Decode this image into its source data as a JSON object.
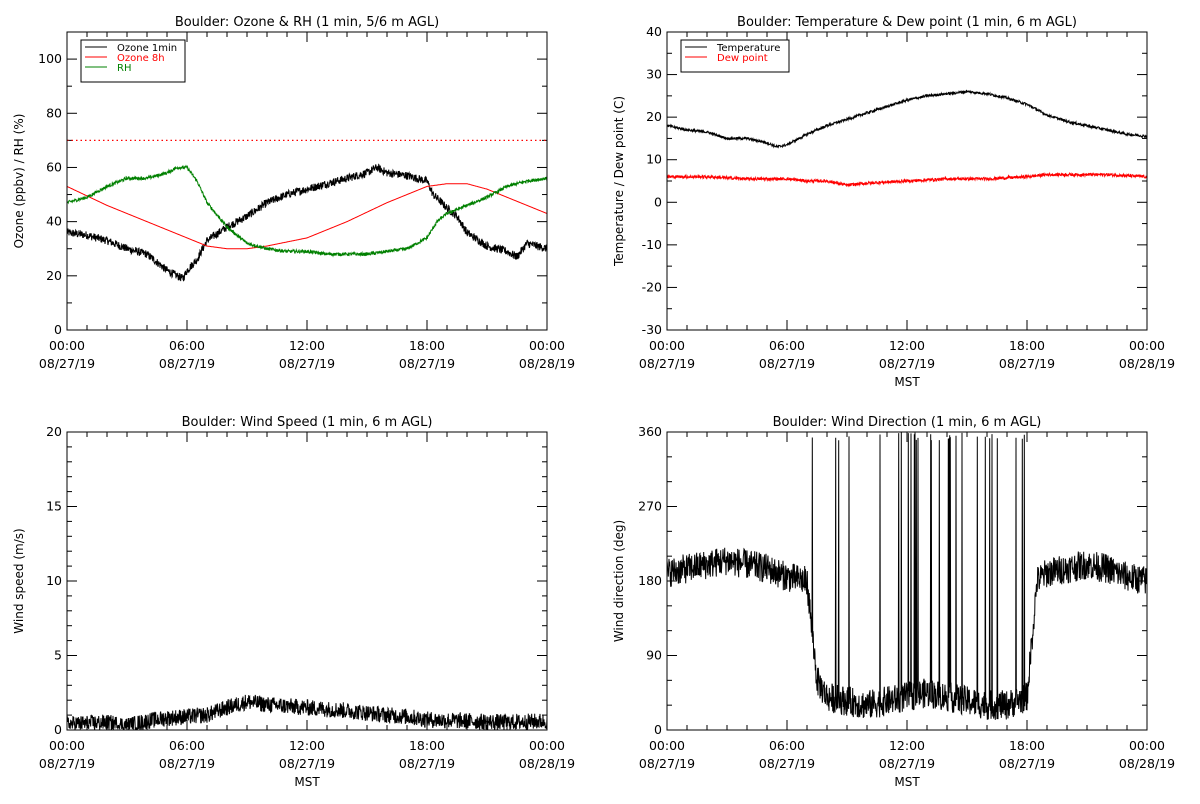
{
  "chart_data": [
    {
      "type": "line",
      "title": "Boulder: Ozone & RH (1 min, 5/6 m AGL)",
      "xlabel": "",
      "ylabel": "Ozone (ppbv) / RH (%)",
      "xlim": [
        0,
        24
      ],
      "ylim": [
        0,
        110
      ],
      "yticks": [
        0,
        20,
        40,
        60,
        80,
        100
      ],
      "xtick_labels": [
        [
          "00:00",
          "08/27/19"
        ],
        [
          "06:00",
          "08/27/19"
        ],
        [
          "12:00",
          "08/27/19"
        ],
        [
          "18:00",
          "08/27/19"
        ],
        [
          "00:00",
          "08/28/19"
        ]
      ],
      "grid": false,
      "legend": "top-left",
      "series": [
        {
          "name": "Ozone 1min",
          "color": "#000000",
          "noise": 1.5,
          "x": [
            0,
            1,
            2,
            3,
            4,
            4.5,
            5,
            5.5,
            5.8,
            6,
            6.5,
            7,
            8,
            9,
            10,
            11,
            12,
            13,
            14,
            15,
            15.5,
            16,
            17,
            18,
            18.3,
            18.6,
            19,
            19.5,
            20,
            21,
            22,
            22.5,
            23,
            24
          ],
          "y": [
            36,
            35,
            33,
            30,
            28,
            25,
            22,
            20,
            19,
            22,
            26,
            33,
            38,
            42,
            47,
            50,
            52,
            54,
            56,
            58,
            60,
            58,
            57,
            55,
            50,
            48,
            45,
            42,
            36,
            31,
            29,
            27,
            32,
            30
          ]
        },
        {
          "name": "Ozone 8h",
          "color": "#ff0000",
          "noise": 0,
          "x": [
            0,
            2,
            4,
            6,
            7,
            8,
            9,
            10,
            12,
            14,
            16,
            18,
            19,
            20,
            21,
            22,
            23,
            24
          ],
          "y": [
            53,
            46,
            40,
            34,
            31,
            30,
            30,
            31,
            34,
            40,
            47,
            53,
            54,
            54,
            52,
            49,
            46,
            43
          ]
        },
        {
          "name": "RH",
          "color": "#008000",
          "noise": 0.6,
          "x": [
            0,
            1,
            2,
            3,
            4,
            5,
            5.5,
            6,
            6.5,
            7,
            8,
            9,
            10,
            11,
            12,
            13,
            14,
            15,
            16,
            17,
            18,
            18.5,
            19,
            20,
            21,
            22,
            23,
            24
          ],
          "y": [
            47,
            49,
            53,
            56,
            56,
            58,
            60,
            60,
            55,
            47,
            38,
            32,
            30,
            29,
            29,
            28,
            28,
            28,
            29,
            30,
            34,
            40,
            43,
            46,
            49,
            53,
            55,
            56
          ]
        }
      ],
      "reference_line": {
        "y": 70,
        "color": "#ff0000",
        "style": "dotted"
      }
    },
    {
      "type": "line",
      "title": "Boulder: Temperature & Dew point (1 min, 6 m AGL)",
      "xlabel": "MST",
      "ylabel": "Temperature / Dew point (C)",
      "xlim": [
        0,
        24
      ],
      "ylim": [
        -30,
        40
      ],
      "yticks": [
        -30,
        -20,
        -10,
        0,
        10,
        20,
        30,
        40
      ],
      "xtick_labels": [
        [
          "00:00",
          "08/27/19"
        ],
        [
          "06:00",
          "08/27/19"
        ],
        [
          "12:00",
          "08/27/19"
        ],
        [
          "18:00",
          "08/27/19"
        ],
        [
          "00:00",
          "08/28/19"
        ]
      ],
      "grid": false,
      "legend": "top-left",
      "series": [
        {
          "name": "Temperature",
          "color": "#000000",
          "noise": 0.3,
          "x": [
            0,
            1,
            2,
            3,
            4,
            5,
            5.5,
            6,
            7,
            8,
            9,
            10,
            11,
            12,
            13,
            14,
            15,
            16,
            17,
            18,
            19,
            20,
            21,
            22,
            23,
            24
          ],
          "y": [
            18,
            17,
            16.5,
            15,
            15,
            14,
            13,
            13.5,
            16,
            18,
            19.5,
            21,
            22.5,
            24,
            25,
            25.5,
            26,
            25.5,
            24.5,
            23,
            20.5,
            19,
            18,
            17,
            16,
            15.5
          ]
        },
        {
          "name": "Dew point",
          "color": "#ff0000",
          "noise": 0.35,
          "x": [
            0,
            2,
            4,
            6,
            7,
            8,
            9,
            10,
            12,
            14,
            16,
            18,
            19,
            20,
            22,
            24
          ],
          "y": [
            6,
            6,
            5.5,
            5.5,
            5,
            5,
            4,
            4.5,
            5,
            5.5,
            5.5,
            6,
            6.5,
            6.5,
            6.5,
            6
          ]
        }
      ]
    },
    {
      "type": "line",
      "title": "Boulder: Wind Speed (1 min, 6 m AGL)",
      "xlabel": "MST",
      "ylabel": "Wind speed (m/s)",
      "xlim": [
        0,
        24
      ],
      "ylim": [
        0,
        20
      ],
      "yticks": [
        0,
        5,
        10,
        15,
        20
      ],
      "xtick_labels": [
        [
          "00:00",
          "08/27/19"
        ],
        [
          "06:00",
          "08/27/19"
        ],
        [
          "12:00",
          "08/27/19"
        ],
        [
          "18:00",
          "08/27/19"
        ],
        [
          "00:00",
          "08/28/19"
        ]
      ],
      "grid": false,
      "series": [
        {
          "name": "",
          "color": "#000000",
          "noise": 0.55,
          "x": [
            0,
            2,
            3,
            4,
            5,
            6,
            7,
            8,
            9,
            10,
            12,
            14,
            16,
            17,
            18,
            20,
            22,
            24
          ],
          "y": [
            0.4,
            0.5,
            0.3,
            0.6,
            0.8,
            0.9,
            1.0,
            1.5,
            1.9,
            1.7,
            1.5,
            1.3,
            1.0,
            0.9,
            0.7,
            0.6,
            0.5,
            0.6
          ]
        }
      ]
    },
    {
      "type": "line",
      "title": "Boulder: Wind Direction (1 min, 6 m AGL)",
      "xlabel": "MST",
      "ylabel": "Wind direction (deg)",
      "xlim": [
        0,
        24
      ],
      "ylim": [
        0,
        360
      ],
      "yticks": [
        0,
        90,
        180,
        270,
        360
      ],
      "xtick_labels": [
        [
          "00:00",
          "08/27/19"
        ],
        [
          "06:00",
          "08/27/19"
        ],
        [
          "12:00",
          "08/27/19"
        ],
        [
          "18:00",
          "08/27/19"
        ],
        [
          "00:00",
          "08/28/19"
        ]
      ],
      "grid": false,
      "series": [
        {
          "name": "",
          "color": "#000000",
          "noise": 18,
          "x": [
            0,
            1,
            2,
            3,
            4,
            5,
            6,
            7,
            7.5,
            8,
            9,
            10,
            11,
            12,
            13,
            14,
            15,
            16,
            17,
            18,
            18.5,
            19,
            20,
            21,
            22,
            23,
            24
          ],
          "y": [
            190,
            195,
            200,
            205,
            200,
            195,
            185,
            180,
            60,
            40,
            35,
            30,
            35,
            40,
            45,
            40,
            35,
            30,
            30,
            40,
            180,
            190,
            195,
            200,
            195,
            185,
            180
          ]
        }
      ]
    }
  ]
}
